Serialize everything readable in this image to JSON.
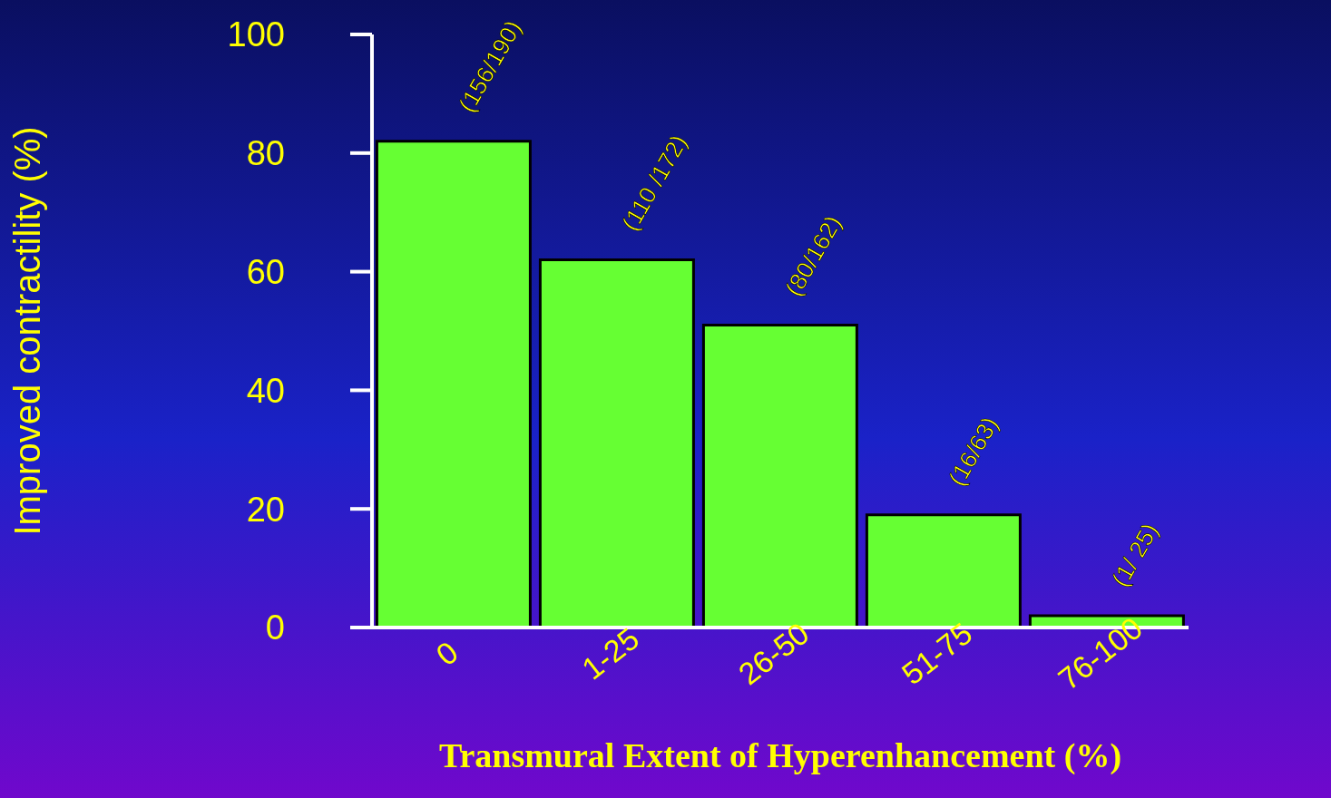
{
  "chart_data": {
    "type": "bar",
    "xlabel": "Transmural Extent of Hyperenhancement (%)",
    "ylabel": "Improved contractility (%)",
    "categories": [
      "0",
      "1-25",
      "26-50",
      "51-75",
      "76-100"
    ],
    "values": [
      82,
      62,
      51,
      19,
      2
    ],
    "value_labels": [
      "(156/190)",
      "(110 /172)",
      "(80/162)",
      "(16/63)",
      "(1/ 25)"
    ],
    "color": "#66ff33",
    "ylim": [
      0,
      100
    ],
    "yticks": [
      0,
      20,
      40,
      60,
      80,
      100
    ],
    "grid": false,
    "legend": false
  }
}
